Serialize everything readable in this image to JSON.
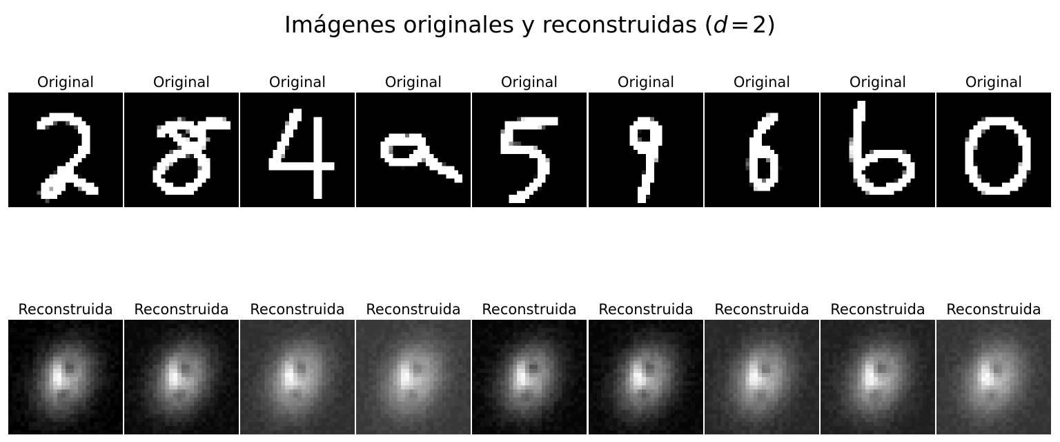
{
  "title": {
    "text": "Imágenes originales y reconstruidas (",
    "var": "d",
    "op": "=",
    "num": "2",
    "close": ")"
  },
  "chart_data": {
    "type": "image-grid",
    "title": "Imágenes originales y reconstruidas (d = 2)",
    "rows": [
      {
        "name": "originales",
        "panel_title": "Original",
        "colormap": "gray",
        "panels": [
          {
            "depicts": "digit 2",
            "background": 0.0
          },
          {
            "depicts": "digit 8 (distorted)",
            "background": 0.0
          },
          {
            "depicts": "digit 4",
            "background": 0.0
          },
          {
            "depicts": "digit 9 (tilted)",
            "background": 0.0
          },
          {
            "depicts": "digit 5",
            "background": 0.0
          },
          {
            "depicts": "digit 9",
            "background": 0.0
          },
          {
            "depicts": "digit 6",
            "background": 0.0
          },
          {
            "depicts": "digit 6",
            "background": 0.0
          },
          {
            "depicts": "digit 0",
            "background": 0.0
          }
        ]
      },
      {
        "name": "reconstruidas",
        "panel_title": "Reconstruida",
        "colormap": "gray",
        "panels": [
          {
            "depicts": "blurred 0/8 blob",
            "background": 0.0
          },
          {
            "depicts": "blurred 0/8 blob",
            "background": 0.03
          },
          {
            "depicts": "blurred 0/8 blob",
            "background": 0.18
          },
          {
            "depicts": "blurred 0/8 blob",
            "background": 0.22
          },
          {
            "depicts": "blurred 0/8 blob",
            "background": 0.02
          },
          {
            "depicts": "blurred 0/8 blob",
            "background": 0.02
          },
          {
            "depicts": "blurred 0/8 blob",
            "background": 0.15
          },
          {
            "depicts": "blurred 0/8 blob",
            "background": 0.12
          },
          {
            "depicts": "blurred 0/8 blob",
            "background": 0.2
          }
        ]
      }
    ]
  }
}
